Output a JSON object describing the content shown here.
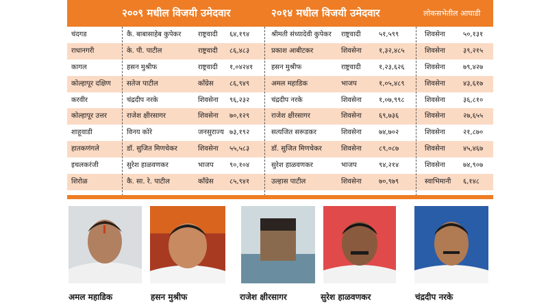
{
  "header": {
    "col_2009": "२००९ मधील विजयी उमेदवार",
    "col_2014": "२०१४ मधील विजयी उमेदवार",
    "col_lok": "लोकसभेतील आघाडी"
  },
  "rows": [
    {
      "constituency": "चंदगड",
      "w2009": "कै. बाबासाहेब कुपेकर",
      "p2009": "राष्ट्रवादी",
      "v2009": "६४,१९४",
      "w2014": "श्रीमती संध्यादेवी कुपेकर",
      "p2014": "राष्ट्रवादी",
      "v2014": "५१,५९९",
      "lparty": "शिवसेना",
      "lvotes": "५०,१३१"
    },
    {
      "constituency": "राधानगरी",
      "w2009": "के. पी. पाटील",
      "p2009": "राष्ट्रवादी",
      "v2009": "८६,४८३",
      "w2014": "प्रकाश आबीटकर",
      "p2014": "शिवसेना",
      "v2014": "१,३२,४८५",
      "lparty": "शिवसेना",
      "lvotes": "३९,२१५"
    },
    {
      "constituency": "कागल",
      "w2009": "हसन मुश्रीफ",
      "p2009": "राष्ट्रवादी",
      "v2009": "१,०४२४१",
      "w2014": "हसन मुश्रीफ",
      "p2014": "राष्ट्रवादी",
      "v2014": "१,२३,६२६",
      "lparty": "शिवसेना",
      "lvotes": "७९,४२७"
    },
    {
      "constituency": "कोल्हापूर दक्षिण",
      "w2009": "सतेज पाटील",
      "p2009": "काँग्रेस",
      "v2009": "८६,९४९",
      "w2014": "अमल महाडिक",
      "p2014": "भाजप",
      "v2014": "१,०५,४८९",
      "lparty": "शिवसेना",
      "lvotes": "४३,६१७"
    },
    {
      "constituency": "करवीर",
      "w2009": "चंद्रदीप नरके",
      "p2009": "शिवसेना",
      "v2009": "९६,२३२",
      "w2014": "चंद्रदीप नरके",
      "p2014": "शिवसेना",
      "v2014": "१,०७,९९८",
      "lparty": "शिवसेना",
      "lvotes": "३६,८१०"
    },
    {
      "constituency": "कोल्हापूर उत्तर",
      "w2009": "राजेश क्षीरसागर",
      "p2009": "शिवसेना",
      "v2009": "७०,१२९",
      "w2014": "राजेश क्षीरसागर",
      "p2014": "शिवसेना",
      "v2014": "६९,७३६",
      "lparty": "शिवसेना",
      "lvotes": "२७,६५५"
    },
    {
      "constituency": "शाहूवाडी",
      "w2009": "विनय कोरे",
      "p2009": "जनसुराज्य",
      "v2009": "७३,१९२",
      "w2014": "सत्यजित सरूडकर",
      "p2014": "शिवसेना",
      "v2014": "७४,७०२",
      "lparty": "शिवसेना",
      "lvotes": "२१,८७०"
    },
    {
      "constituency": "हातकणंगले",
      "w2009": "डॉ. सुजित मिणचेकर",
      "p2009": "शिवसेना",
      "v2009": "५५,५८३",
      "w2014": "डॉ. सुजित मिणचेकर",
      "p2014": "शिवसेना",
      "v2014": "८९,०८७",
      "lparty": "शिवसेना",
      "lvotes": "४५,४६७"
    },
    {
      "constituency": "इचलकरंजी",
      "w2009": "सुरेश हाळवणकर",
      "p2009": "भाजप",
      "v2009": "९०,१०४",
      "w2014": "सुरेश हाळवणकर",
      "p2014": "भाजप",
      "v2014": "९४,२१४",
      "lparty": "शिवसेना",
      "lvotes": "७४,९०७"
    },
    {
      "constituency": "शिरोळ",
      "w2009": "कै. सा. रे. पाटील",
      "p2009": "काँग्रेस",
      "v2009": "८५,९४१",
      "w2014": "उल्हास पाटील",
      "p2014": "शिवसेना",
      "v2014": "७०,९७९",
      "lparty": "स्वाभिमानी",
      "lvotes": "६,१४८"
    }
  ],
  "photos": [
    {
      "caption": "अमल महाडिक"
    },
    {
      "caption": "हसन मुश्रीफ"
    },
    {
      "caption": "राजेश क्षीरसागर"
    },
    {
      "caption": "सुरेश हाळवणकर"
    },
    {
      "caption": "चंद्रदीप नरके"
    }
  ]
}
